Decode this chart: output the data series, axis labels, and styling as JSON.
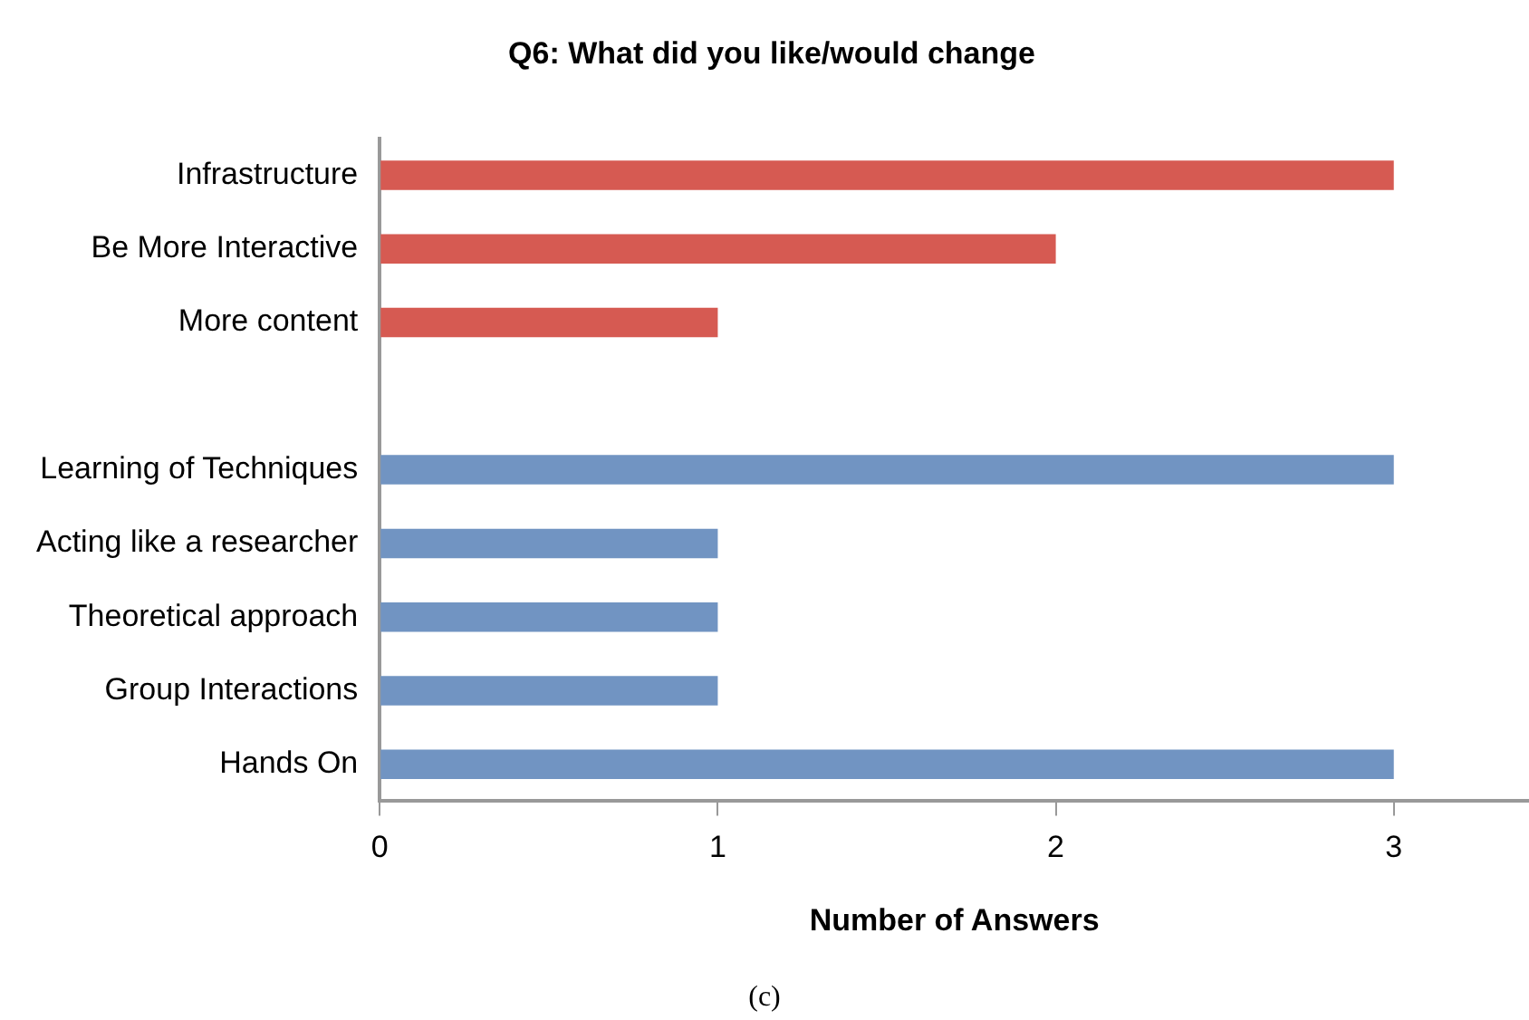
{
  "chart_data": {
    "type": "bar",
    "orientation": "horizontal",
    "title": "Q6: What did you like/would change",
    "xlabel": "Number of Answers",
    "categories": [
      "Infrastructure",
      "Be More Interactive",
      "More content",
      null,
      "Learning of Techniques",
      "Acting like a researcher",
      "Theoretical approach",
      "Group Interactions",
      "Hands On"
    ],
    "values": [
      3,
      2,
      1,
      null,
      3,
      1,
      1,
      1,
      3
    ],
    "colors": [
      "#d65a52",
      "#d65a52",
      "#d65a52",
      "#d65a52",
      "#7194c2",
      "#7194c2",
      "#7194c2",
      "#7194c2",
      "#7194c2"
    ],
    "xlim": [
      0,
      3.4
    ],
    "xticks": [
      0,
      1,
      2,
      3
    ],
    "grid": false,
    "legend": false,
    "annotations": [
      "(c)"
    ]
  }
}
